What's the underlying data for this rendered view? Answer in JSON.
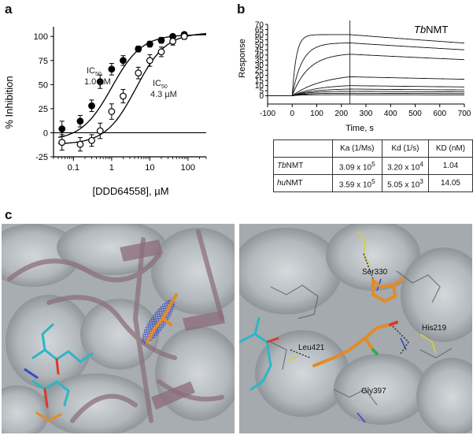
{
  "panels": {
    "a": "a",
    "b": "b",
    "c": "c"
  },
  "panel_a": {
    "ylabel": "% Inhibition",
    "xlabel": "[DDD64558], µM",
    "ic50_left": {
      "label_main": "IC",
      "label_sub": "50",
      "value": "1.0 µM"
    },
    "ic50_right": {
      "label_main": "IC",
      "label_sub": "50",
      "value": "4.3 µM"
    }
  },
  "panel_b": {
    "title_italic": "Tb",
    "title_rest": "NMT",
    "ylabel": "Response",
    "xlabel": "Time, s"
  },
  "kinetics_table": {
    "headers": [
      "",
      "Ka (1/Ms)",
      "Kd (1/s)",
      "KD (nM)"
    ],
    "rows": [
      {
        "name_italic": "Tb",
        "name_rest": "NMT",
        "ka_base": "3.09 x 10",
        "ka_exp": "5",
        "kd_base": "3.20 x 10",
        "kd_exp": "4",
        "KD": "1.04"
      },
      {
        "name_italic": "hu",
        "name_rest": "NMT",
        "ka_base": "3.59 x 10",
        "ka_exp": "5",
        "kd_base": "5.05 x 10",
        "kd_exp": "3",
        "KD": "14.05"
      }
    ]
  },
  "panel_c_labels": [
    "Ser330",
    "His219",
    "Leu421",
    "Gly397"
  ],
  "chart_data": [
    {
      "type": "scatter",
      "xlabel": "[DDD64558], µM",
      "ylabel": "% Inhibition",
      "xscale": "log",
      "xlim": [
        0.03,
        300
      ],
      "ylim": [
        -25,
        110
      ],
      "x_ticks": [
        0.1,
        1,
        10,
        100
      ],
      "x_ticklabels": [
        "0.1",
        "1",
        "10",
        "100"
      ],
      "y_ticks": [
        -25,
        0,
        25,
        50,
        75,
        100
      ],
      "y_ticklabels": [
        "-25",
        "0",
        "25",
        "50",
        "75",
        "100"
      ],
      "series": [
        {
          "marker": "filled",
          "ic50": 1.0,
          "bottom": -8,
          "top": 102,
          "x": [
            0.05,
            0.15,
            0.3,
            0.5,
            1,
            2,
            5,
            10,
            20,
            40,
            80
          ],
          "y": [
            4,
            12,
            28,
            53,
            66,
            75,
            87,
            92,
            96,
            100,
            102
          ],
          "err": [
            8,
            6,
            6,
            7,
            6,
            5,
            3,
            3,
            3,
            2,
            2
          ]
        },
        {
          "marker": "open",
          "ic50": 4.3,
          "bottom": -12,
          "top": 104,
          "x": [
            0.05,
            0.15,
            0.3,
            0.5,
            1,
            2,
            5,
            10,
            20,
            40,
            80
          ],
          "y": [
            -10,
            -12,
            -8,
            2,
            22,
            38,
            62,
            75,
            84,
            95,
            100
          ],
          "err": [
            8,
            7,
            6,
            8,
            8,
            7,
            6,
            6,
            5,
            4,
            3
          ]
        }
      ]
    },
    {
      "type": "line",
      "title": "TbNMT",
      "xlabel": "Time, s",
      "ylabel": "Response",
      "xlim": [
        -100,
        700
      ],
      "ylim": [
        -5,
        70
      ],
      "x_ticks": [
        -100,
        0,
        100,
        200,
        300,
        400,
        500,
        600,
        700
      ],
      "y_ticks": [
        0,
        5,
        10,
        15,
        20,
        25,
        30,
        35,
        40,
        45,
        50,
        55,
        60,
        65,
        70
      ],
      "association_end": 235,
      "series": [
        {
          "rmax": 60,
          "k": 0.06,
          "decay": 0.00032
        },
        {
          "rmax": 52,
          "k": 0.025,
          "decay": 0.0003
        },
        {
          "rmax": 42,
          "k": 0.015,
          "decay": 0.0003
        },
        {
          "rmax": 22,
          "k": 0.008,
          "decay": 0.0003
        },
        {
          "rmax": 11,
          "k": 0.01,
          "decay": 0.0003
        },
        {
          "rmax": 7,
          "k": 0.012,
          "decay": 0.0003
        },
        {
          "rmax": 4.5,
          "k": 0.015,
          "decay": 0.0003
        },
        {
          "rmax": 2.5,
          "k": 0.02,
          "decay": 0.0003
        },
        {
          "rmax": 1,
          "k": 0.03,
          "decay": 0.0003
        }
      ]
    }
  ]
}
